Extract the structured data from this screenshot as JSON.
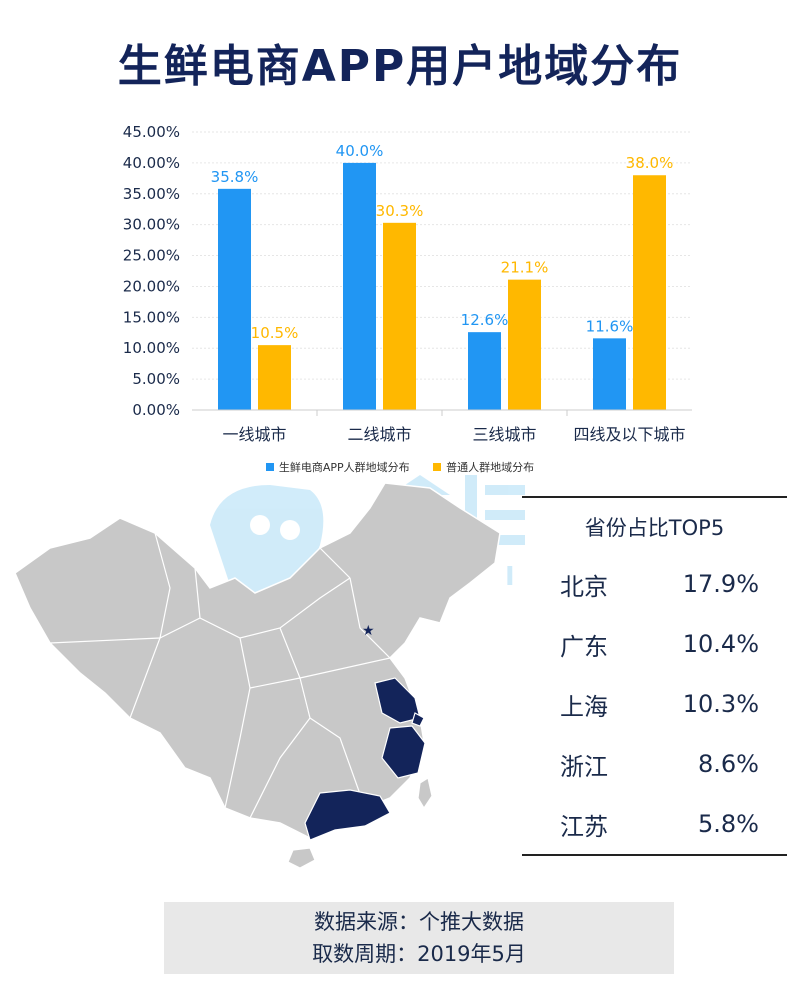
{
  "title": "生鲜电商APP用户地域分布",
  "chart_data": {
    "type": "bar",
    "categories": [
      "一线城市",
      "二线城市",
      "三线城市",
      "四线及以下城市"
    ],
    "series": [
      {
        "name": "生鲜电商APP人群地域分布",
        "color": "#2196f3",
        "values": [
          35.8,
          40.0,
          12.6,
          11.6
        ],
        "labels": [
          "35.8%",
          "40.0%",
          "12.6%",
          "11.6%"
        ]
      },
      {
        "name": "普通人群地域分布",
        "color": "#ffb800",
        "values": [
          10.5,
          30.3,
          21.1,
          38.0
        ],
        "labels": [
          "10.5%",
          "30.3%",
          "21.1%",
          "38.0%"
        ]
      }
    ],
    "ylim": [
      0,
      45
    ],
    "yticks": [
      0,
      5,
      10,
      15,
      20,
      25,
      30,
      35,
      40,
      45
    ],
    "ytick_labels": [
      "0.00%",
      "5.00%",
      "10.00%",
      "15.00%",
      "20.00%",
      "25.00%",
      "30.00%",
      "35.00%",
      "40.00%",
      "45.00%"
    ],
    "grid": true,
    "legend": "bottom"
  },
  "top5": {
    "heading": "省份占比TOP5",
    "rows": [
      {
        "name": "北京",
        "value": "17.9%"
      },
      {
        "name": "广东",
        "value": "10.4%"
      },
      {
        "name": "上海",
        "value": "10.3%"
      },
      {
        "name": "浙江",
        "value": "8.6%"
      },
      {
        "name": "江苏",
        "value": "5.8%"
      }
    ]
  },
  "map": {
    "highlighted_regions": [
      "广东",
      "上海",
      "浙江",
      "江苏"
    ],
    "capital_marker": "北京",
    "highlight_color": "#13245a",
    "base_color": "#c8c8c8"
  },
  "watermark": {
    "text": "个推",
    "latin": "TUI"
  },
  "source": {
    "line1": "数据来源：个推大数据",
    "line2": "取数周期：2019年5月"
  }
}
